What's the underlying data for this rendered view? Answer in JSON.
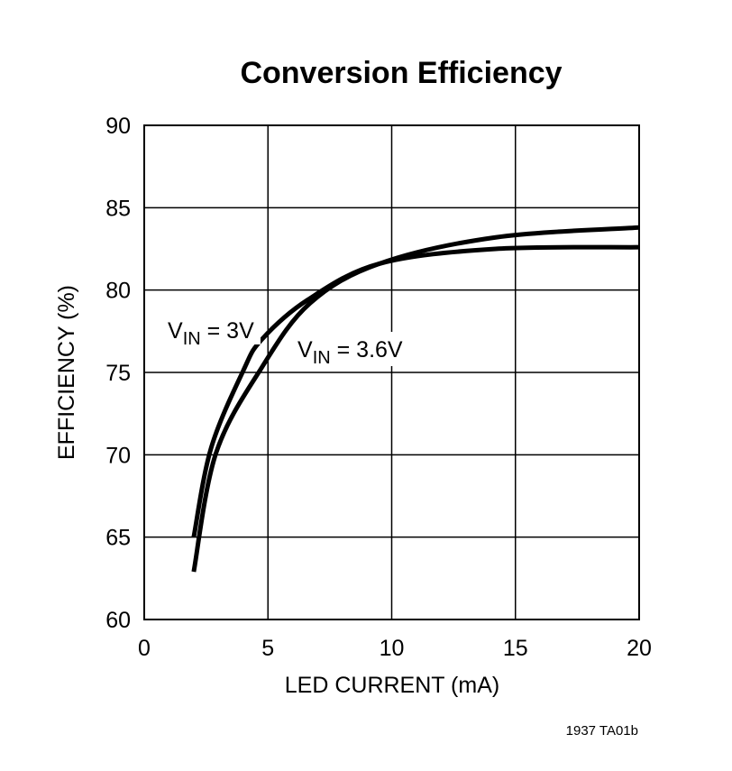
{
  "chart_data": {
    "type": "line",
    "title": "Conversion Efficiency",
    "xlabel": "LED CURRENT (mA)",
    "ylabel": "EFFICIENCY (%)",
    "xlim": [
      0,
      20
    ],
    "ylim": [
      60,
      90
    ],
    "xticks": [
      "0",
      "5",
      "10",
      "15",
      "20"
    ],
    "yticks": [
      "60",
      "65",
      "70",
      "75",
      "80",
      "85",
      "90"
    ],
    "grid": true,
    "series": [
      {
        "name_main": "V",
        "name_sub": "IN",
        "name_rest": " = 3V",
        "x": [
          2.0,
          2.7,
          4.0,
          4.75,
          6.6,
          9.5,
          14.2,
          20
        ],
        "y": [
          65,
          70.4,
          75.1,
          77.0,
          79.4,
          81.6,
          82.5,
          82.6
        ]
      },
      {
        "name_main": "V",
        "name_sub": "IN",
        "name_rest": " = 3.6V",
        "x": [
          2.0,
          2.9,
          4.75,
          6.7,
          9.5,
          14.2,
          20
        ],
        "y": [
          62.9,
          70.1,
          75.3,
          79.2,
          81.6,
          83.2,
          83.8
        ]
      }
    ],
    "footnote": "1937 TA01b",
    "line_color": "#000000"
  }
}
